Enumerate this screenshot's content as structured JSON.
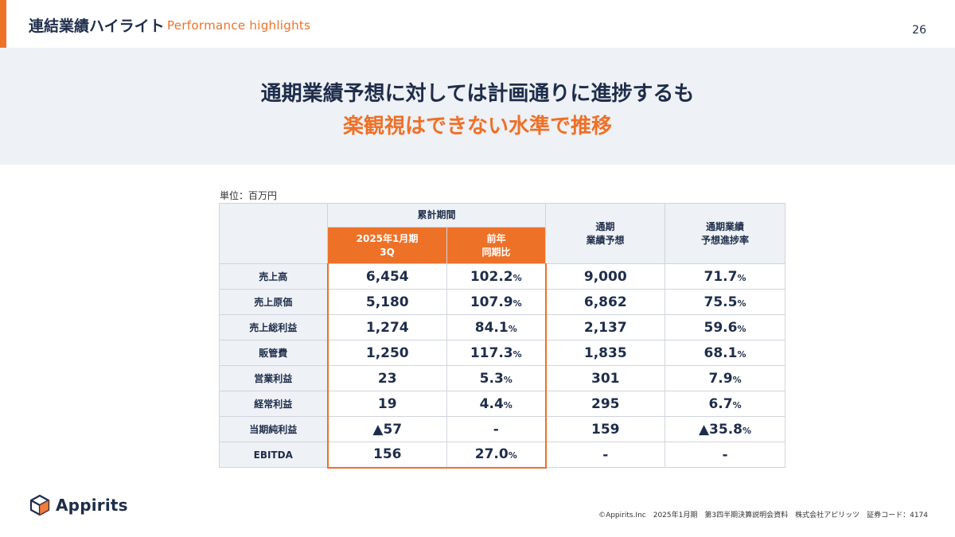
{
  "header": {
    "title": "連結業績ハイライト",
    "subtitle": "Performance highlights",
    "page_number": "26"
  },
  "headline": {
    "line1": "通期業績予想に対しては計画通りに進捗するも",
    "line2": "楽観視はできない水準で推移"
  },
  "table": {
    "unit": "単位：百万円",
    "group_header": "累計期間",
    "col_current": "2025年1月期\n3Q",
    "col_yoy": "前年\n同期比",
    "col_forecast": "通期\n業績予想",
    "col_progress": "通期業績\n予想進捗率",
    "rows": [
      {
        "label": "売上高",
        "current": "6,454",
        "yoy": "102.2",
        "yoy_unit": "%",
        "forecast": "9,000",
        "progress": "71.7",
        "progress_unit": "%"
      },
      {
        "label": "売上原価",
        "current": "5,180",
        "yoy": "107.9",
        "yoy_unit": "%",
        "forecast": "6,862",
        "progress": "75.5",
        "progress_unit": "%"
      },
      {
        "label": "売上総利益",
        "current": "1,274",
        "yoy": "84.1",
        "yoy_unit": "%",
        "forecast": "2,137",
        "progress": "59.6",
        "progress_unit": "%"
      },
      {
        "label": "販管費",
        "current": "1,250",
        "yoy": "117.3",
        "yoy_unit": "%",
        "forecast": "1,835",
        "progress": "68.1",
        "progress_unit": "%"
      },
      {
        "label": "営業利益",
        "current": "23",
        "yoy": "5.3",
        "yoy_unit": "%",
        "forecast": "301",
        "progress": "7.9",
        "progress_unit": "%"
      },
      {
        "label": "経常利益",
        "current": "19",
        "yoy": "4.4",
        "yoy_unit": "%",
        "forecast": "295",
        "progress": "6.7",
        "progress_unit": "%"
      },
      {
        "label": "当期純利益",
        "current": "▲57",
        "yoy": "-",
        "yoy_unit": "",
        "forecast": "159",
        "progress": "▲35.8",
        "progress_unit": "%"
      },
      {
        "label": "EBITDA",
        "current": "156",
        "yoy": "27.0",
        "yoy_unit": "%",
        "forecast": "-",
        "progress": "-",
        "progress_unit": ""
      }
    ]
  },
  "logo": {
    "text": "Appirits",
    "icon": "cube-logo-icon"
  },
  "footer": {
    "text": "©Appirits.Inc　2025年1月期　第3四半期決算説明会資料　株式会社アピリッツ　証券コード：4174"
  },
  "colors": {
    "accent": "#ee7128",
    "navy": "#1e2d4a",
    "header_bg": "#eef1f5"
  }
}
